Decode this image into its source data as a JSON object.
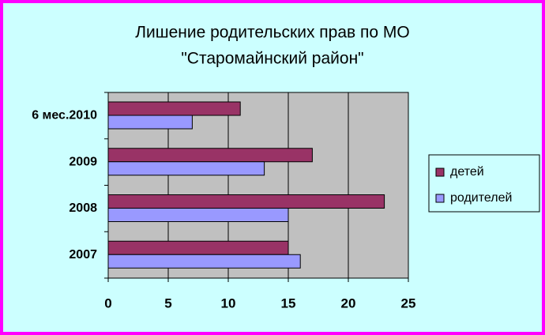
{
  "chart_data": {
    "type": "hbar",
    "title": [
      "Лишение родительских прав по МО",
      "\"Старомайнский район\""
    ],
    "categories": [
      "2007",
      "2008",
      "2009",
      "6 мес.2010"
    ],
    "series": [
      {
        "name": "детей",
        "color": "#993366",
        "values": [
          15,
          23,
          17,
          11
        ]
      },
      {
        "name": "родителей",
        "color": "#9999ff",
        "values": [
          16,
          15,
          13,
          7
        ]
      }
    ],
    "xlim": [
      0,
      25
    ],
    "xticks": [
      0,
      5,
      10,
      15,
      20,
      25
    ],
    "grid": true,
    "legend": "right"
  }
}
